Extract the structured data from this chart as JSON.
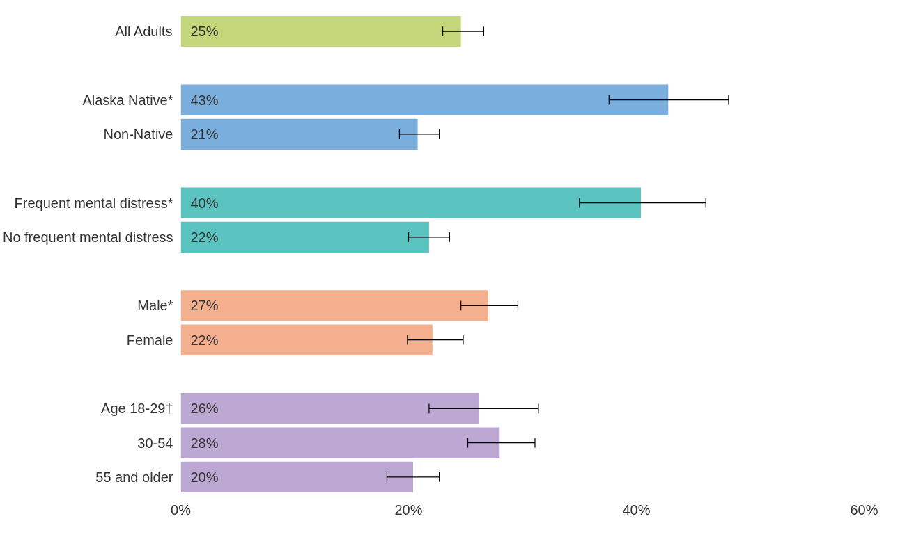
{
  "chart_data": {
    "type": "bar",
    "orientation": "horizontal",
    "categories": [
      "All Adults",
      null,
      "Alaska Native*",
      "Non-Native",
      null,
      "Frequent mental distress*",
      "No frequent mental distress",
      null,
      "Male*",
      "Female",
      null,
      "Age 18-29†",
      "30-54",
      "55 and older"
    ],
    "values": [
      24.6,
      null,
      42.8,
      20.8,
      null,
      40.4,
      21.8,
      null,
      27.0,
      22.1,
      null,
      26.2,
      28.0,
      20.4
    ],
    "value_labels": [
      "25%",
      null,
      "43%",
      "21%",
      null,
      "40%",
      "22%",
      null,
      "27%",
      "22%",
      null,
      "26%",
      "28%",
      "20%"
    ],
    "errors": [
      [
        23.0,
        26.6
      ],
      null,
      [
        37.6,
        48.1
      ],
      [
        19.2,
        22.7
      ],
      null,
      [
        35.0,
        46.1
      ],
      [
        20.0,
        23.6
      ],
      null,
      [
        24.6,
        29.6
      ],
      [
        19.9,
        24.8
      ],
      null,
      [
        21.8,
        31.4
      ],
      [
        25.2,
        31.1
      ],
      [
        18.1,
        22.7
      ]
    ],
    "colors": [
      "#c4d67a",
      "#ffffff",
      "#7aaedc",
      "#7aaedc",
      "#ffffff",
      "#5bc4c0",
      "#5bc4c0",
      "#ffffff",
      "#f4b08e",
      "#f4b08e",
      "#ffffff",
      "#bca8d2",
      "#bca8d2",
      "#bca8d2"
    ],
    "xlim": [
      0,
      60
    ],
    "xticks": [
      {
        "value": 0,
        "label": "0%"
      },
      {
        "value": 20,
        "label": "20%"
      },
      {
        "value": 40,
        "label": "40%"
      },
      {
        "value": 60,
        "label": "60%"
      }
    ],
    "grid": false
  }
}
